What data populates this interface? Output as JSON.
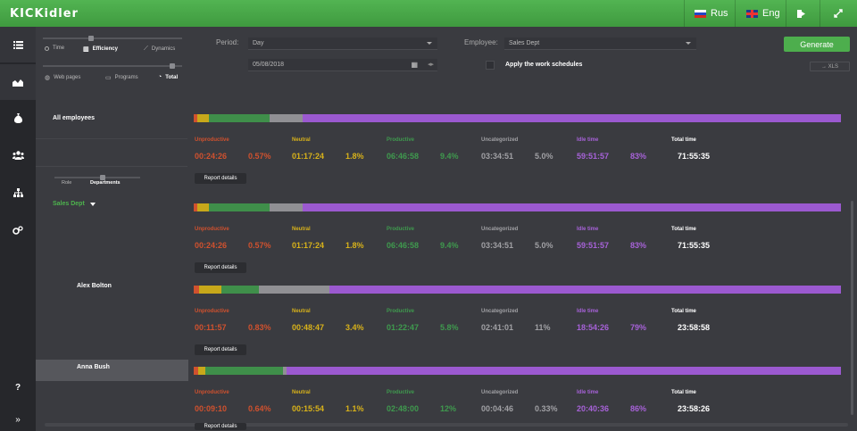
{
  "app": {
    "logo": "KICKidler"
  },
  "topbar": {
    "lang_ru": "Rus",
    "lang_en": "Eng"
  },
  "filters": {
    "view_options": [
      "Time",
      "Efficiency",
      "Dynamics"
    ],
    "view_selected": "Efficiency",
    "scope_options": [
      "Web pages",
      "Programs",
      "Total"
    ],
    "scope_selected": "Total",
    "period_label": "Period:",
    "period_value": "Day",
    "date_value": "05/08/2018",
    "employee_label": "Employee:",
    "employee_value": "Sales Dept",
    "work_schedules_label": "Apply the work schedules",
    "generate_label": "Generate",
    "xls_label": "→ XLS"
  },
  "grouping": {
    "options": [
      "Role",
      "Departments"
    ],
    "selected": "Departments",
    "dept_name": "Sales Dept"
  },
  "labels": {
    "unproductive": "Unproductive",
    "neutral": "Neutral",
    "productive": "Productive",
    "uncategorized": "Uncategorized",
    "idle": "Idle time",
    "total": "Total time",
    "report_details": "Report details"
  },
  "colors": {
    "unproductive": "#d0512e",
    "neutral": "#c8a81a",
    "productive": "#3f8f4a",
    "uncategorized": "#909094",
    "idle": "#9b59d0",
    "accent": "#4dae4d"
  },
  "rows": [
    {
      "name": "All employees",
      "unproductive": {
        "time": "00:24:26",
        "pct": "0.57%",
        "frac": 0.0057
      },
      "neutral": {
        "time": "01:17:24",
        "pct": "1.8%",
        "frac": 0.018
      },
      "productive": {
        "time": "06:46:58",
        "pct": "9.4%",
        "frac": 0.094
      },
      "uncategorized": {
        "time": "03:34:51",
        "pct": "5.0%",
        "frac": 0.05
      },
      "idle": {
        "time": "59:51:57",
        "pct": "83%",
        "frac": 0.83
      },
      "total": "71:55:35"
    },
    {
      "name": "Sales Dept",
      "unproductive": {
        "time": "00:24:26",
        "pct": "0.57%",
        "frac": 0.0057
      },
      "neutral": {
        "time": "01:17:24",
        "pct": "1.8%",
        "frac": 0.018
      },
      "productive": {
        "time": "06:46:58",
        "pct": "9.4%",
        "frac": 0.094
      },
      "uncategorized": {
        "time": "03:34:51",
        "pct": "5.0%",
        "frac": 0.05
      },
      "idle": {
        "time": "59:51:57",
        "pct": "83%",
        "frac": 0.83
      },
      "total": "71:55:35"
    },
    {
      "name": "Alex Bolton",
      "unproductive": {
        "time": "00:11:57",
        "pct": "0.83%",
        "frac": 0.0083
      },
      "neutral": {
        "time": "00:48:47",
        "pct": "3.4%",
        "frac": 0.034
      },
      "productive": {
        "time": "01:22:47",
        "pct": "5.8%",
        "frac": 0.058
      },
      "uncategorized": {
        "time": "02:41:01",
        "pct": "11%",
        "frac": 0.11
      },
      "idle": {
        "time": "18:54:26",
        "pct": "79%",
        "frac": 0.79
      },
      "total": "23:58:58"
    },
    {
      "name": "Anna Bush",
      "unproductive": {
        "time": "00:09:10",
        "pct": "0.64%",
        "frac": 0.0064
      },
      "neutral": {
        "time": "00:15:54",
        "pct": "1.1%",
        "frac": 0.011
      },
      "productive": {
        "time": "02:48:00",
        "pct": "12%",
        "frac": 0.12
      },
      "uncategorized": {
        "time": "00:04:46",
        "pct": "0.33%",
        "frac": 0.0033
      },
      "idle": {
        "time": "20:40:36",
        "pct": "86%",
        "frac": 0.86
      },
      "total": "23:58:26"
    }
  ]
}
